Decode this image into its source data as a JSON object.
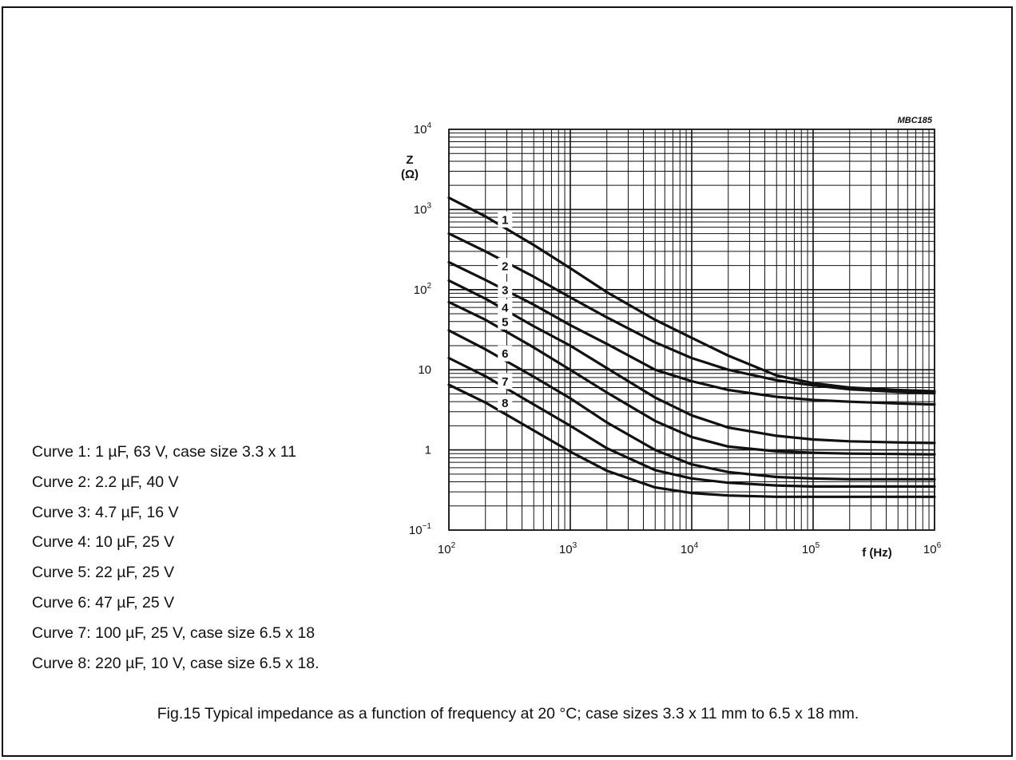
{
  "figure": {
    "caption": "Fig.15  Typical impedance as a function of frequency at 20 °C; case sizes 3.3 x 11 mm to 6.5 x 18 mm.",
    "code": "MBC185",
    "legend": [
      "Curve 1: 1 µF, 63 V, case size 3.3 x 11",
      "Curve 2: 2.2 µF, 40 V",
      "Curve 3: 4.7 µF, 16 V",
      "Curve 4: 10 µF, 25 V",
      "Curve 5: 22 µF, 25 V",
      "Curve 6: 47 µF, 25 V",
      "Curve 7: 100 µF, 25 V, case size 6.5 x 18",
      "Curve 8: 220 µF, 10 V, case size 6.5 x 18."
    ]
  },
  "chart_data": {
    "type": "line",
    "xlabel": "f (Hz)",
    "ylabel": "Z\n(Ω)",
    "xscale": "log",
    "yscale": "log",
    "xlim": [
      100,
      1000000
    ],
    "ylim": [
      0.1,
      10000
    ],
    "grid": true,
    "x_ticks": [
      {
        "base": "10",
        "exp": "2"
      },
      {
        "base": "10",
        "exp": "3"
      },
      {
        "base": "10",
        "exp": "4"
      },
      {
        "base": "10",
        "exp": "5"
      },
      {
        "base": "10",
        "exp": "6"
      }
    ],
    "y_ticks": [
      {
        "base": "10",
        "exp": "−1"
      },
      {
        "base": "1",
        "exp": ""
      },
      {
        "base": "10",
        "exp": ""
      },
      {
        "base": "10",
        "exp": "2"
      },
      {
        "base": "10",
        "exp": "3"
      },
      {
        "base": "10",
        "exp": "4"
      }
    ],
    "series": [
      {
        "name": "1",
        "label_at": [
          290,
          750
        ],
        "x": [
          100,
          200,
          500,
          1000,
          2000,
          5000,
          10000,
          20000,
          50000,
          100000,
          200000,
          500000,
          1000000
        ],
        "y": [
          1400,
          820,
          360,
          185,
          93,
          42,
          25,
          15,
          8.5,
          6.8,
          6.0,
          5.6,
          5.4
        ]
      },
      {
        "name": "2",
        "label_at": [
          290,
          198
        ],
        "x": [
          100,
          200,
          500,
          1000,
          2000,
          5000,
          10000,
          20000,
          50000,
          100000,
          200000,
          500000,
          1000000
        ],
        "y": [
          500,
          300,
          145,
          80,
          45,
          22,
          14,
          10,
          7.4,
          6.4,
          5.7,
          5.3,
          5.1
        ]
      },
      {
        "name": "3",
        "label_at": [
          290,
          100
        ],
        "x": [
          100,
          200,
          500,
          1000,
          2000,
          5000,
          10000,
          20000,
          50000,
          100000,
          200000,
          500000,
          1000000
        ],
        "y": [
          220,
          132,
          65,
          36,
          21,
          10,
          7.2,
          5.6,
          4.6,
          4.2,
          4.0,
          3.8,
          3.7
        ]
      },
      {
        "name": "4",
        "label_at": [
          290,
          60
        ],
        "x": [
          100,
          200,
          500,
          1000,
          2000,
          5000,
          10000,
          20000,
          50000,
          100000,
          200000,
          500000,
          1000000
        ],
        "y": [
          130,
          77,
          35,
          20,
          10.5,
          4.5,
          2.7,
          1.9,
          1.5,
          1.35,
          1.28,
          1.24,
          1.22
        ]
      },
      {
        "name": "5",
        "label_at": [
          290,
          40
        ],
        "x": [
          100,
          200,
          500,
          1000,
          2000,
          5000,
          10000,
          20000,
          50000,
          100000,
          200000,
          500000,
          1000000
        ],
        "y": [
          70,
          42,
          19,
          10,
          5.2,
          2.3,
          1.45,
          1.1,
          0.96,
          0.92,
          0.9,
          0.89,
          0.88
        ]
      },
      {
        "name": "6",
        "label_at": [
          290,
          16
        ],
        "x": [
          100,
          200,
          500,
          1000,
          2000,
          5000,
          10000,
          20000,
          50000,
          100000,
          200000,
          500000,
          1000000
        ],
        "y": [
          31,
          18,
          8.2,
          4.4,
          2.2,
          1.0,
          0.66,
          0.53,
          0.46,
          0.44,
          0.43,
          0.43,
          0.43
        ]
      },
      {
        "name": "7",
        "label_at": [
          290,
          7.2
        ],
        "x": [
          100,
          200,
          500,
          1000,
          2000,
          5000,
          10000,
          20000,
          50000,
          100000,
          200000,
          500000,
          1000000
        ],
        "y": [
          14,
          8.3,
          3.7,
          2.0,
          1.05,
          0.56,
          0.44,
          0.39,
          0.36,
          0.35,
          0.35,
          0.35,
          0.35
        ]
      },
      {
        "name": "8",
        "label_at": [
          290,
          3.9
        ],
        "x": [
          100,
          200,
          500,
          1000,
          2000,
          5000,
          10000,
          20000,
          50000,
          100000,
          200000,
          500000,
          1000000
        ],
        "y": [
          6.5,
          3.9,
          1.75,
          0.95,
          0.55,
          0.34,
          0.29,
          0.27,
          0.26,
          0.26,
          0.26,
          0.26,
          0.26
        ]
      }
    ]
  }
}
